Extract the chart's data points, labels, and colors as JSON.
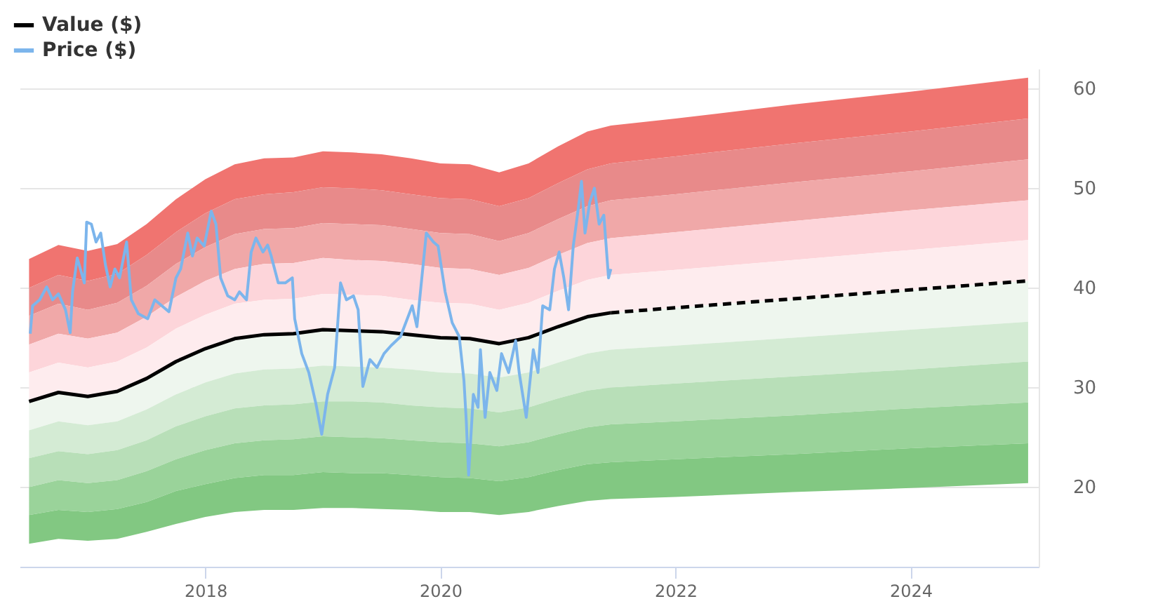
{
  "chart_data": {
    "type": "area",
    "x": [
      2016.5,
      2016.75,
      2017,
      2017.25,
      2017.5,
      2017.75,
      2018,
      2018.25,
      2018.5,
      2018.75,
      2019,
      2019.25,
      2019.5,
      2019.75,
      2020,
      2020.25,
      2020.5,
      2020.75,
      2021,
      2021.25,
      2021.45,
      2022,
      2023,
      2024,
      2025
    ],
    "xlim": [
      2016.42,
      2025.09
    ],
    "xticks": [
      2018,
      2020,
      2022,
      2024
    ],
    "ylim": [
      12,
      62
    ],
    "yticks": [
      20,
      30,
      40,
      50,
      60
    ],
    "grid": "y",
    "legend": "top left",
    "series": [
      {
        "color": "#f07470",
        "values": [
          null,
          null,
          null,
          null,
          null,
          null,
          null,
          null,
          null,
          null,
          null,
          null,
          null,
          null,
          null,
          null,
          null,
          null,
          null,
          null,
          null,
          null,
          null,
          null,
          null
        ],
        "upper": [
          42.9,
          44.3,
          43.7,
          44.4,
          46.4,
          48.9,
          50.9,
          52.4,
          53.0,
          53.1,
          53.7,
          53.6,
          53.4,
          53.0,
          52.5,
          52.4,
          51.6,
          52.5,
          54.2,
          55.7,
          56.3,
          57.0,
          58.4,
          59.7,
          61.1
        ],
        "lower": [
          40.0,
          41.3,
          40.7,
          41.4,
          43.3,
          45.6,
          47.5,
          48.9,
          49.4,
          49.6,
          50.1,
          50.0,
          49.8,
          49.4,
          49.0,
          48.9,
          48.2,
          49.0,
          50.5,
          51.9,
          52.5,
          53.2,
          54.5,
          55.7,
          57.0
        ]
      },
      {
        "color": "#e88a8a",
        "values": [
          null,
          null,
          null,
          null,
          null,
          null,
          null,
          null,
          null,
          null,
          null,
          null,
          null,
          null,
          null,
          null,
          null,
          null,
          null,
          null,
          null,
          null,
          null,
          null,
          null
        ],
        "upper": [
          40.0,
          41.3,
          40.7,
          41.4,
          43.3,
          45.6,
          47.5,
          48.9,
          49.4,
          49.6,
          50.1,
          50.0,
          49.8,
          49.4,
          49.0,
          48.9,
          48.2,
          49.0,
          50.5,
          51.9,
          52.5,
          53.2,
          54.5,
          55.7,
          57.0
        ],
        "lower": [
          37.2,
          38.4,
          37.8,
          38.5,
          40.2,
          42.4,
          44.1,
          45.4,
          45.9,
          46.0,
          46.5,
          46.4,
          46.3,
          45.9,
          45.5,
          45.4,
          44.7,
          45.5,
          46.9,
          48.2,
          48.8,
          49.4,
          50.6,
          51.7,
          52.9
        ]
      },
      {
        "color": "#f0a8a8",
        "values": [
          null,
          null,
          null,
          null,
          null,
          null,
          null,
          null,
          null,
          null,
          null,
          null,
          null,
          null,
          null,
          null,
          null,
          null,
          null,
          null,
          null,
          null,
          null,
          null,
          null
        ],
        "upper": [
          37.2,
          38.4,
          37.8,
          38.5,
          40.2,
          42.4,
          44.1,
          45.4,
          45.9,
          46.0,
          46.5,
          46.4,
          46.3,
          45.9,
          45.5,
          45.4,
          44.7,
          45.5,
          46.9,
          48.2,
          48.8,
          49.4,
          50.6,
          51.7,
          52.9
        ],
        "lower": [
          34.3,
          35.4,
          34.9,
          35.5,
          37.1,
          39.1,
          40.7,
          41.9,
          42.4,
          42.5,
          43.0,
          42.8,
          42.7,
          42.4,
          42.0,
          41.9,
          41.3,
          42.0,
          43.3,
          44.5,
          45.0,
          45.6,
          46.7,
          47.8,
          48.8
        ]
      },
      {
        "color": "#fdd5da",
        "values": [
          null,
          null,
          null,
          null,
          null,
          null,
          null,
          null,
          null,
          null,
          null,
          null,
          null,
          null,
          null,
          null,
          null,
          null,
          null,
          null,
          null,
          null,
          null,
          null,
          null
        ],
        "upper": [
          34.3,
          35.4,
          34.9,
          35.5,
          37.1,
          39.1,
          40.7,
          41.9,
          42.4,
          42.5,
          43.0,
          42.8,
          42.7,
          42.4,
          42.0,
          41.9,
          41.3,
          42.0,
          43.3,
          44.5,
          45.0,
          45.6,
          46.7,
          47.8,
          48.8
        ],
        "lower": [
          31.5,
          32.5,
          32.0,
          32.6,
          34.0,
          35.9,
          37.3,
          38.4,
          38.8,
          38.9,
          39.4,
          39.3,
          39.2,
          38.8,
          38.5,
          38.4,
          37.8,
          38.5,
          39.7,
          40.8,
          41.3,
          41.8,
          42.8,
          43.8,
          44.8
        ]
      },
      {
        "color": "#feecee",
        "values": [
          null,
          null,
          null,
          null,
          null,
          null,
          null,
          null,
          null,
          null,
          null,
          null,
          null,
          null,
          null,
          null,
          null,
          null,
          null,
          null,
          null,
          null,
          null,
          null,
          null
        ],
        "upper": [
          31.5,
          32.5,
          32.0,
          32.6,
          34.0,
          35.9,
          37.3,
          38.4,
          38.8,
          38.9,
          39.4,
          39.3,
          39.2,
          38.8,
          38.5,
          38.4,
          37.8,
          38.5,
          39.7,
          40.8,
          41.3,
          41.8,
          42.8,
          43.8,
          44.8
        ],
        "lower": [
          28.6,
          29.5,
          29.1,
          29.6,
          30.9,
          32.6,
          33.9,
          34.9,
          35.3,
          35.4,
          35.8,
          35.7,
          35.6,
          35.3,
          35.0,
          34.9,
          34.4,
          35.0,
          36.1,
          37.1,
          37.5,
          38.0,
          38.9,
          39.8,
          40.7
        ]
      },
      {
        "color": "#eef6ee",
        "values": [
          null,
          null,
          null,
          null,
          null,
          null,
          null,
          null,
          null,
          null,
          null,
          null,
          null,
          null,
          null,
          null,
          null,
          null,
          null,
          null,
          null,
          null,
          null,
          null,
          null
        ],
        "upper": [
          28.6,
          29.5,
          29.1,
          29.6,
          30.9,
          32.6,
          33.9,
          34.9,
          35.3,
          35.4,
          35.8,
          35.7,
          35.6,
          35.3,
          35.0,
          34.9,
          34.4,
          35.0,
          36.1,
          37.1,
          37.5,
          38.0,
          38.9,
          39.8,
          40.7
        ],
        "lower": [
          25.7,
          26.6,
          26.2,
          26.6,
          27.8,
          29.3,
          30.5,
          31.4,
          31.8,
          31.9,
          32.2,
          32.1,
          32.0,
          31.8,
          31.5,
          31.4,
          31.0,
          31.5,
          32.5,
          33.4,
          33.8,
          34.2,
          35.0,
          35.8,
          36.6
        ]
      },
      {
        "color": "#d4ebd4",
        "values": [
          null,
          null,
          null,
          null,
          null,
          null,
          null,
          null,
          null,
          null,
          null,
          null,
          null,
          null,
          null,
          null,
          null,
          null,
          null,
          null,
          null,
          null,
          null,
          null,
          null
        ],
        "upper": [
          25.7,
          26.6,
          26.2,
          26.6,
          27.8,
          29.3,
          30.5,
          31.4,
          31.8,
          31.9,
          32.2,
          32.1,
          32.0,
          31.8,
          31.5,
          31.4,
          31.0,
          31.5,
          32.5,
          33.4,
          33.8,
          34.2,
          35.0,
          35.8,
          36.6
        ],
        "lower": [
          22.9,
          23.6,
          23.3,
          23.7,
          24.7,
          26.1,
          27.1,
          27.9,
          28.2,
          28.3,
          28.6,
          28.6,
          28.5,
          28.2,
          28.0,
          27.9,
          27.5,
          28.0,
          28.9,
          29.7,
          30.0,
          30.4,
          31.1,
          31.8,
          32.6
        ]
      },
      {
        "color": "#b8dfb8",
        "values": [
          null,
          null,
          null,
          null,
          null,
          null,
          null,
          null,
          null,
          null,
          null,
          null,
          null,
          null,
          null,
          null,
          null,
          null,
          null,
          null,
          null,
          null,
          null,
          null,
          null
        ],
        "upper": [
          22.9,
          23.6,
          23.3,
          23.7,
          24.7,
          26.1,
          27.1,
          27.9,
          28.2,
          28.3,
          28.6,
          28.6,
          28.5,
          28.2,
          28.0,
          27.9,
          27.5,
          28.0,
          28.9,
          29.7,
          30.0,
          30.4,
          31.1,
          31.8,
          32.6
        ],
        "lower": [
          20.0,
          20.7,
          20.4,
          20.7,
          21.6,
          22.8,
          23.7,
          24.4,
          24.7,
          24.8,
          25.1,
          25.0,
          24.9,
          24.7,
          24.5,
          24.4,
          24.1,
          24.5,
          25.3,
          26.0,
          26.3,
          26.6,
          27.2,
          27.9,
          28.5
        ]
      },
      {
        "color": "#9ad39a",
        "values": [
          null,
          null,
          null,
          null,
          null,
          null,
          null,
          null,
          null,
          null,
          null,
          null,
          null,
          null,
          null,
          null,
          null,
          null,
          null,
          null,
          null,
          null,
          null,
          null,
          null
        ],
        "upper": [
          20.0,
          20.7,
          20.4,
          20.7,
          21.6,
          22.8,
          23.7,
          24.4,
          24.7,
          24.8,
          25.1,
          25.0,
          24.9,
          24.7,
          24.5,
          24.4,
          24.1,
          24.5,
          25.3,
          26.0,
          26.3,
          26.6,
          27.2,
          27.9,
          28.5
        ],
        "lower": [
          17.2,
          17.7,
          17.5,
          17.8,
          18.5,
          19.6,
          20.3,
          20.9,
          21.2,
          21.2,
          21.5,
          21.4,
          21.4,
          21.2,
          21.0,
          20.9,
          20.6,
          21.0,
          21.7,
          22.3,
          22.5,
          22.8,
          23.3,
          23.9,
          24.4
        ]
      },
      {
        "color": "#82c882",
        "values": [
          null,
          null,
          null,
          null,
          null,
          null,
          null,
          null,
          null,
          null,
          null,
          null,
          null,
          null,
          null,
          null,
          null,
          null,
          null,
          null,
          null,
          null,
          null,
          null,
          null
        ],
        "upper": [
          17.2,
          17.7,
          17.5,
          17.8,
          18.5,
          19.6,
          20.3,
          20.9,
          21.2,
          21.2,
          21.5,
          21.4,
          21.4,
          21.2,
          21.0,
          20.9,
          20.6,
          21.0,
          21.7,
          22.3,
          22.5,
          22.8,
          23.3,
          23.9,
          24.4
        ],
        "lower": [
          14.3,
          14.8,
          14.6,
          14.8,
          15.5,
          16.3,
          17.0,
          17.5,
          17.7,
          17.7,
          17.9,
          17.9,
          17.8,
          17.7,
          17.5,
          17.5,
          17.2,
          17.5,
          18.1,
          18.6,
          18.8,
          19.0,
          19.5,
          19.9,
          20.4
        ]
      },
      {
        "type": "line",
        "name": "Value ($)",
        "color": "#000000",
        "x": [
          2016.5,
          2016.75,
          2017,
          2017.25,
          2017.5,
          2017.75,
          2018,
          2018.25,
          2018.5,
          2018.75,
          2019,
          2019.25,
          2019.5,
          2019.75,
          2020,
          2020.25,
          2020.5,
          2020.75,
          2021,
          2021.25,
          2021.45
        ],
        "values": [
          28.6,
          29.5,
          29.1,
          29.6,
          30.9,
          32.6,
          33.9,
          34.9,
          35.3,
          35.4,
          35.8,
          35.7,
          35.6,
          35.3,
          35.0,
          34.9,
          34.4,
          35.0,
          36.1,
          37.1,
          37.5
        ]
      },
      {
        "type": "line",
        "line_style": "dashed",
        "color": "#000000",
        "x": [
          2021.45,
          2022,
          2023,
          2024,
          2025
        ],
        "values": [
          37.5,
          38.0,
          38.9,
          39.8,
          40.7
        ]
      },
      {
        "type": "line",
        "name": "Price ($)",
        "color": "#7cb5ec",
        "x": [
          2016.51,
          2016.53,
          2016.59,
          2016.65,
          2016.7,
          2016.75,
          2016.81,
          2016.85,
          2016.87,
          2016.91,
          2016.97,
          2016.99,
          2017.03,
          2017.07,
          2017.11,
          2017.15,
          2017.19,
          2017.23,
          2017.27,
          2017.33,
          2017.37,
          2017.43,
          2017.51,
          2017.57,
          2017.63,
          2017.69,
          2017.75,
          2017.79,
          2017.85,
          2017.89,
          2017.93,
          2017.99,
          2018.05,
          2018.09,
          2018.13,
          2018.19,
          2018.25,
          2018.29,
          2018.35,
          2018.39,
          2018.43,
          2018.49,
          2018.53,
          2018.56,
          2018.62,
          2018.68,
          2018.74,
          2018.76,
          2018.82,
          2018.88,
          2018.94,
          2018.99,
          2019.04,
          2019.1,
          2019.15,
          2019.2,
          2019.26,
          2019.3,
          2019.34,
          2019.4,
          2019.46,
          2019.52,
          2019.58,
          2019.66,
          2019.76,
          2019.8,
          2019.88,
          2019.94,
          2019.98,
          2020.04,
          2020.1,
          2020.16,
          2020.2,
          2020.22,
          2020.24,
          2020.28,
          2020.32,
          2020.34,
          2020.38,
          2020.42,
          2020.48,
          2020.52,
          2020.58,
          2020.64,
          2020.67,
          2020.73,
          2020.79,
          2020.83,
          2020.87,
          2020.93,
          2020.97,
          2021.01,
          2021.05,
          2021.09,
          2021.13,
          2021.17,
          2021.2,
          2021.23,
          2021.27,
          2021.31,
          2021.35,
          2021.39,
          2021.41,
          2021.43,
          2021.45
        ],
        "values": [
          35.4,
          38.2,
          38.8,
          40.1,
          38.8,
          39.4,
          37.8,
          35.5,
          39.6,
          43.0,
          40.5,
          46.6,
          46.4,
          44.6,
          45.5,
          42.3,
          40.1,
          41.9,
          41.0,
          44.6,
          38.8,
          37.4,
          36.9,
          38.8,
          38.2,
          37.6,
          41.0,
          41.9,
          45.5,
          43.2,
          45.0,
          44.2,
          47.7,
          46.4,
          41.0,
          39.2,
          38.8,
          39.6,
          38.8,
          43.6,
          45.0,
          43.6,
          44.3,
          43.2,
          40.5,
          40.5,
          41.0,
          36.9,
          33.4,
          31.5,
          28.4,
          25.3,
          29.3,
          32.0,
          40.5,
          38.8,
          39.2,
          37.8,
          30.1,
          32.8,
          32.0,
          33.4,
          34.2,
          35.1,
          38.2,
          36.1,
          45.5,
          44.6,
          44.2,
          39.6,
          36.5,
          35.1,
          30.7,
          26.6,
          21.2,
          29.3,
          28.0,
          33.8,
          27.0,
          31.5,
          29.7,
          33.4,
          31.5,
          34.7,
          31.5,
          27.0,
          33.8,
          31.5,
          38.2,
          37.8,
          41.9,
          43.6,
          41.0,
          37.8,
          44.2,
          47.7,
          50.7,
          45.5,
          48.6,
          50.0,
          46.4,
          47.3,
          44.2,
          41.0,
          41.9
        ]
      }
    ]
  }
}
